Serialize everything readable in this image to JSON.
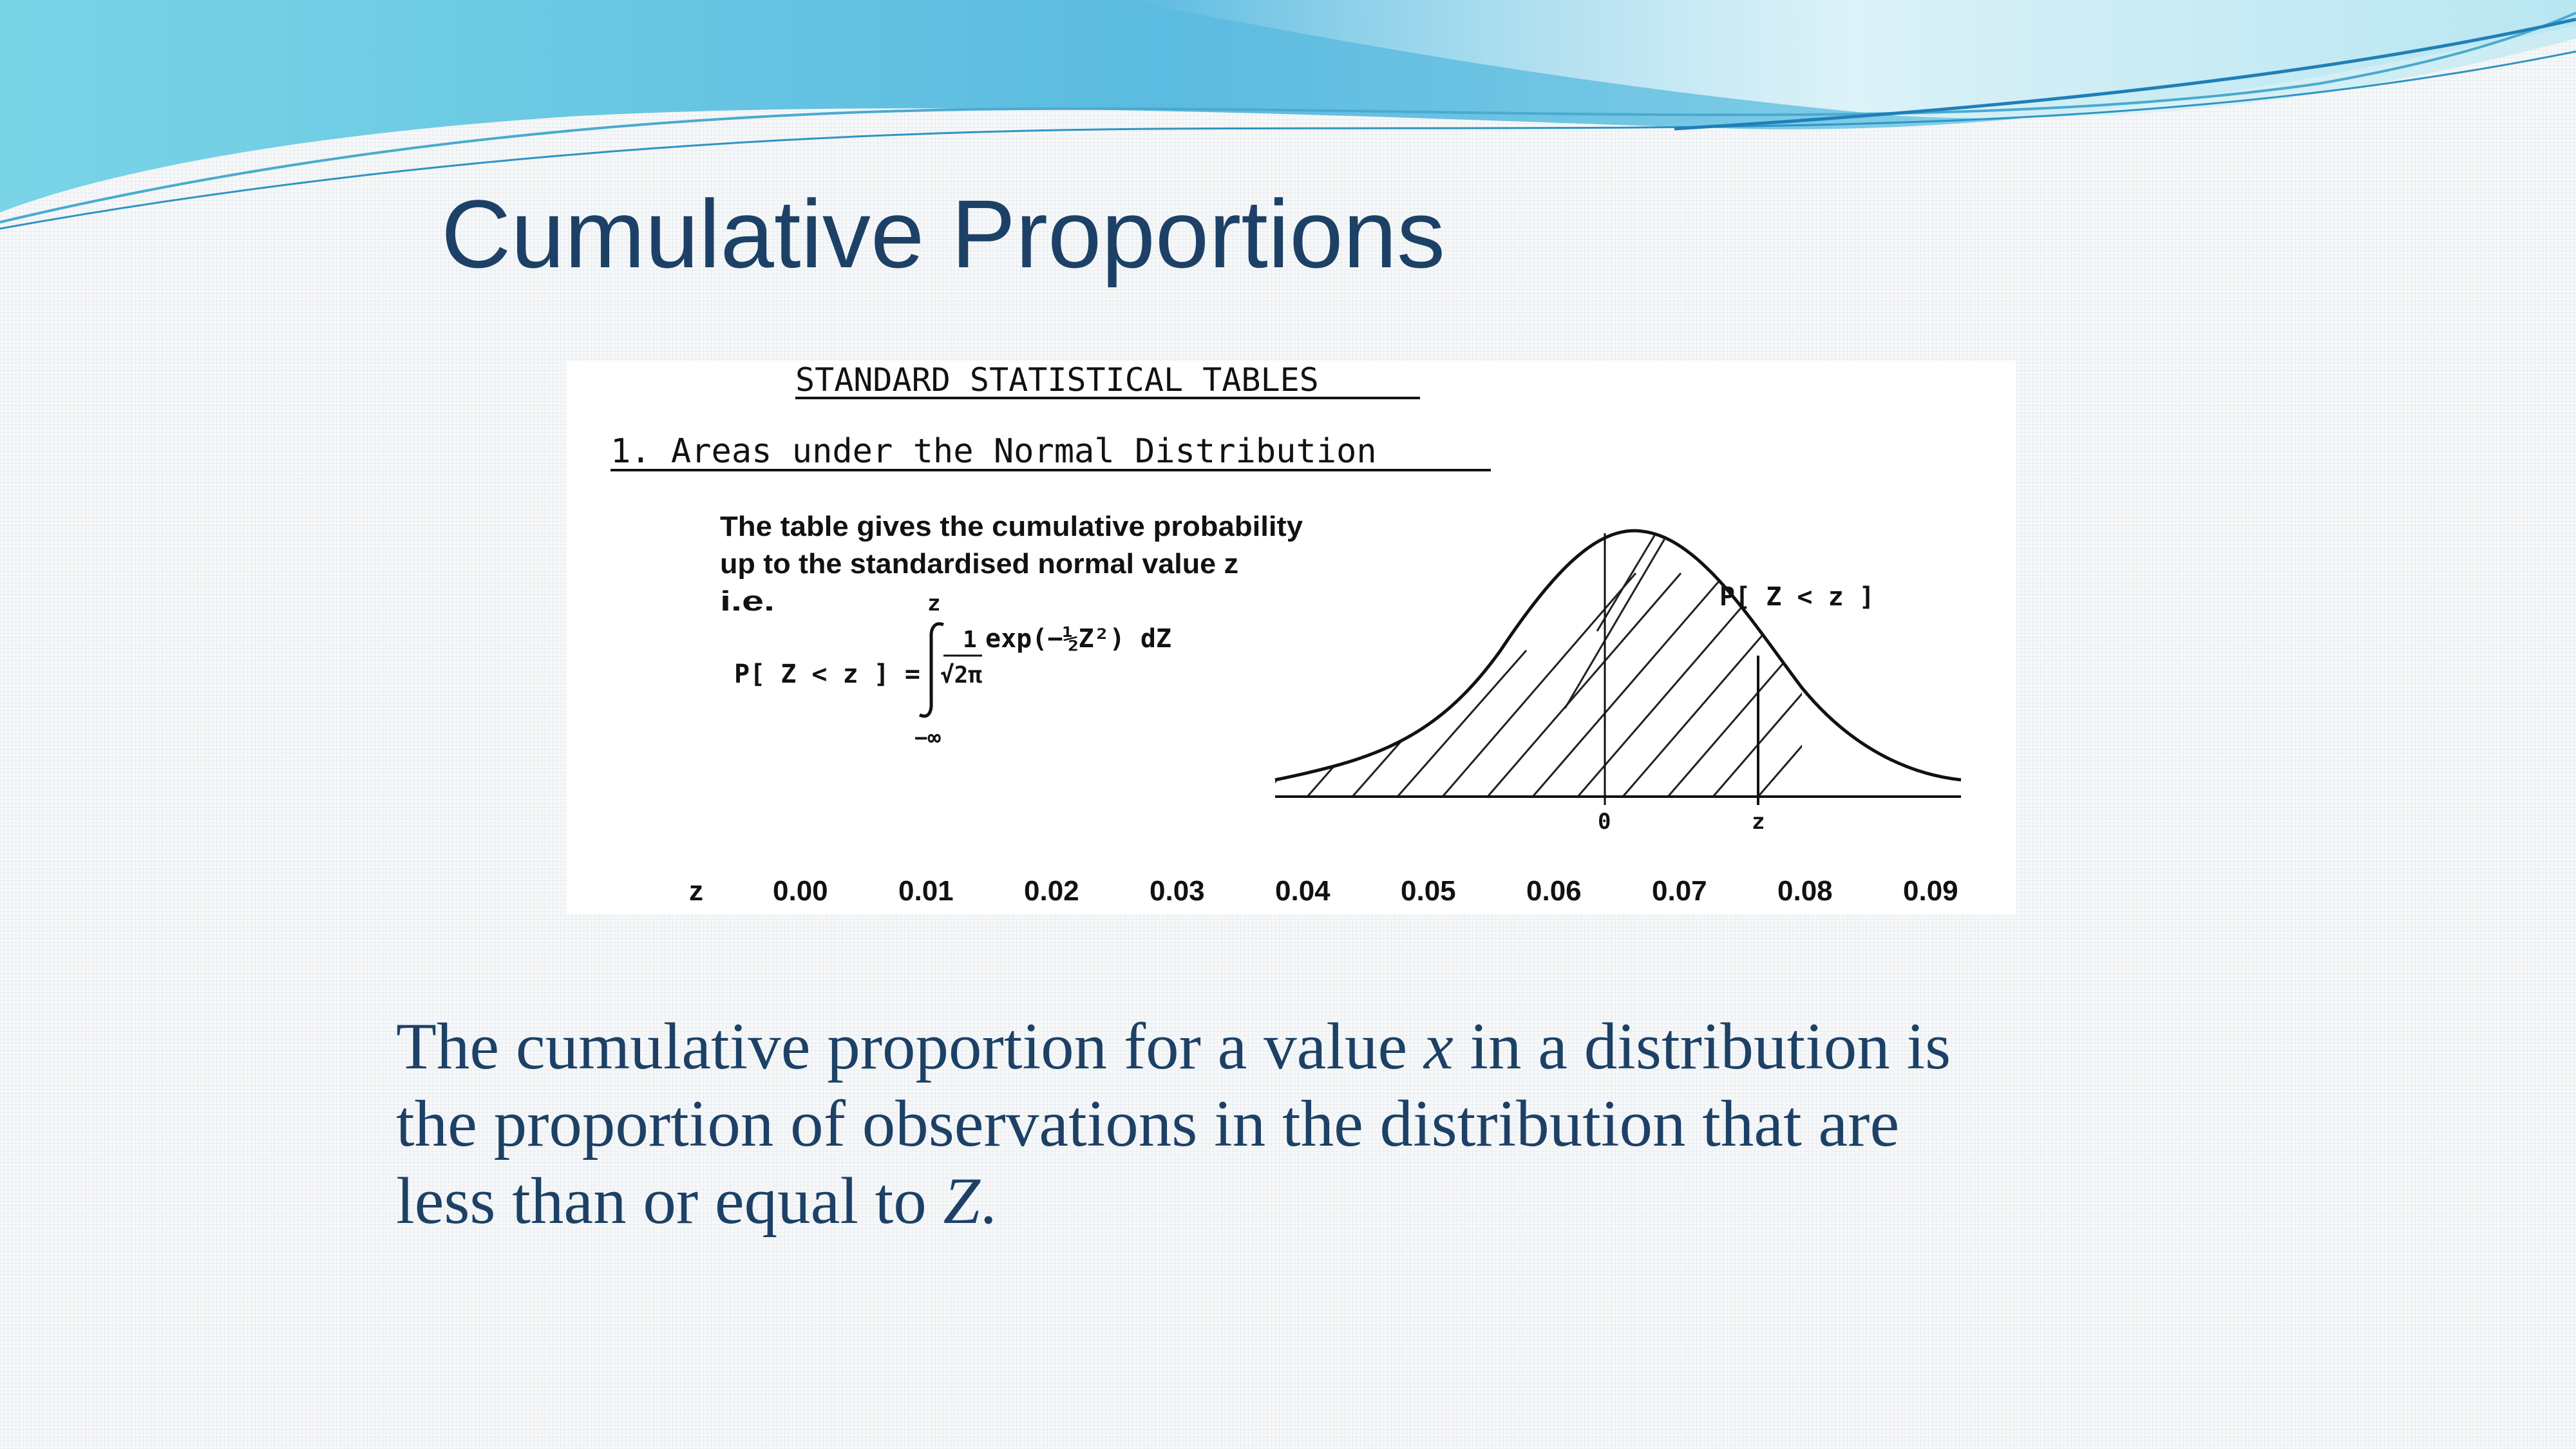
{
  "slide": {
    "title": "Cumulative Proportions",
    "colors": {
      "title": "#1d4166",
      "body": "#1d4166",
      "wave_dark": "#3aa7d4",
      "wave_light": "#a6e0ea"
    }
  },
  "table_image": {
    "heading": "STANDARD STATISTICAL TABLES",
    "section": "1. Areas under the Normal Distribution",
    "description": [
      "The table gives the cumulative probability",
      "up to the standardised normal value z",
      "i.e."
    ],
    "formula": {
      "lhs": "P[ Z < z ] =",
      "upper_limit": "z",
      "lower_limit": "−∞",
      "numerator": "1",
      "denominator": "√2π",
      "integrand": "exp(−½Z²) dZ"
    },
    "curve_label": "P[ Z < z ]",
    "axis_labels": {
      "zero": "0",
      "z": "z"
    },
    "column_header": "z",
    "columns": [
      "0.00",
      "0.01",
      "0.02",
      "0.03",
      "0.04",
      "0.05",
      "0.06",
      "0.07",
      "0.08",
      "0.09"
    ]
  },
  "body": {
    "line1_a": "The cumulative proportion for a value ",
    "line1_var": "x",
    "line1_b": " in a distribution is",
    "line2": "the proportion of observations in the distribution that are",
    "line3_a": "less than or equal to ",
    "line3_var": "Z",
    "line3_b": "."
  }
}
